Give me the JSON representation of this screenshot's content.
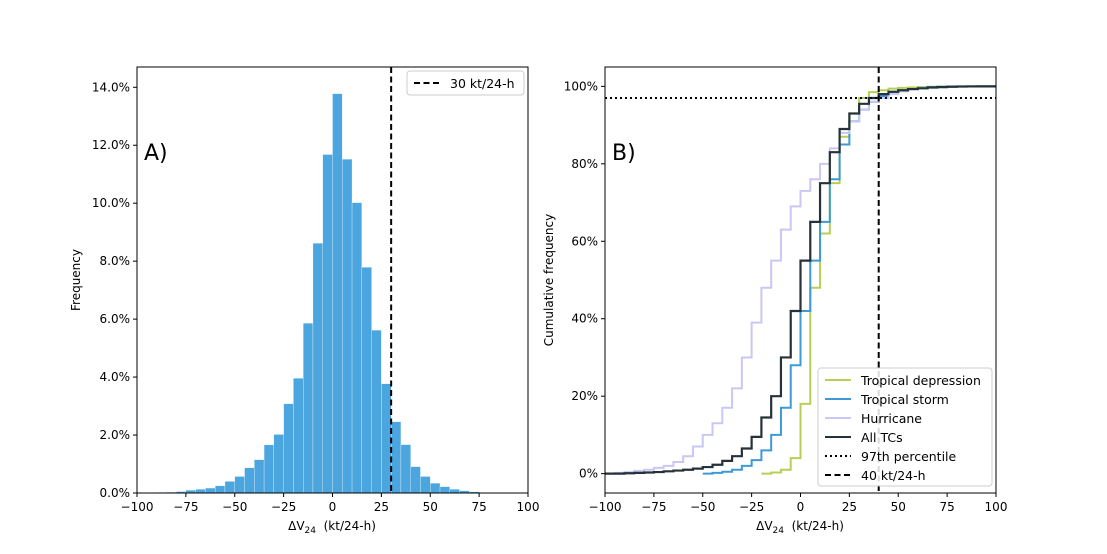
{
  "chart_data": [
    {
      "panel_label": "A)",
      "type": "bar",
      "xlabel": "ΔV",
      "xlabel_sub": "24",
      "xlabel_unit": "  (kt/24-h)",
      "ylabel": "Frequency",
      "xlim": [
        -100,
        100
      ],
      "ylim": [
        0,
        0.147
      ],
      "xticks": [
        "−100",
        "−75",
        "−50",
        "−25",
        "0",
        "25",
        "50",
        "75",
        "100"
      ],
      "yticks": [
        "0.0%",
        "2.0%",
        "4.0%",
        "6.0%",
        "8.0%",
        "10.0%",
        "12.0%",
        "14.0%"
      ],
      "bin_width": 5,
      "bin_starts": [
        -90,
        -85,
        -80,
        -75,
        -70,
        -65,
        -60,
        -55,
        -50,
        -45,
        -40,
        -35,
        -30,
        -25,
        -20,
        -15,
        -10,
        -5,
        0,
        5,
        10,
        15,
        20,
        25,
        30,
        35,
        40,
        45,
        50,
        55,
        60,
        65,
        70
      ],
      "values": [
        0.0002,
        0.0003,
        0.0005,
        0.001,
        0.0013,
        0.0017,
        0.0025,
        0.004,
        0.0057,
        0.0087,
        0.0115,
        0.0166,
        0.0202,
        0.0308,
        0.0396,
        0.0586,
        0.0862,
        0.1168,
        0.1378,
        0.1152,
        0.1002,
        0.0779,
        0.0562,
        0.0377,
        0.0246,
        0.0167,
        0.0091,
        0.0057,
        0.0034,
        0.0022,
        0.0013,
        0.0008,
        0.0004
      ],
      "bar_color": "#4ba5de",
      "reference_line": {
        "x": 30,
        "label": "30 kt/24-h"
      },
      "legend_position": "top-right",
      "grid": false
    },
    {
      "panel_label": "B)",
      "type": "line",
      "xlabel": "ΔV",
      "xlabel_sub": "24",
      "xlabel_unit": "  (kt/24-h)",
      "ylabel": "Cumulative frequency",
      "xlim": [
        -100,
        100
      ],
      "ylim": [
        -0.05,
        1.05
      ],
      "xticks": [
        "−100",
        "−75",
        "−50",
        "−25",
        "0",
        "25",
        "50",
        "75",
        "100"
      ],
      "yticks": [
        "0%",
        "20%",
        "40%",
        "60%",
        "80%",
        "100%"
      ],
      "step_width": 5,
      "series": [
        {
          "name": "Tropical depression",
          "color": "#b5d055",
          "x": [
            -20,
            -15,
            -10,
            -5,
            0,
            5,
            10,
            15,
            20,
            25,
            30,
            35,
            40,
            45,
            50,
            55,
            60,
            65,
            70,
            75
          ],
          "values": [
            0.0,
            0.003,
            0.01,
            0.04,
            0.18,
            0.48,
            0.62,
            0.75,
            0.87,
            0.93,
            0.97,
            0.985,
            0.99,
            0.994,
            0.996,
            0.997,
            0.998,
            0.999,
            0.9995,
            1.0
          ]
        },
        {
          "name": "Tropical storm",
          "color": "#3d9ad6",
          "x": [
            -50,
            -45,
            -40,
            -35,
            -30,
            -25,
            -20,
            -15,
            -10,
            -5,
            0,
            5,
            10,
            15,
            20,
            25,
            30,
            35,
            40,
            45,
            50,
            55,
            60,
            65,
            70,
            75,
            80
          ],
          "values": [
            0.0,
            0.002,
            0.005,
            0.01,
            0.02,
            0.035,
            0.06,
            0.1,
            0.17,
            0.28,
            0.42,
            0.55,
            0.65,
            0.76,
            0.85,
            0.91,
            0.94,
            0.96,
            0.975,
            0.985,
            0.99,
            0.993,
            0.996,
            0.998,
            0.999,
            0.9995,
            1.0
          ]
        },
        {
          "name": "Hurricane",
          "color": "#c9c7f5",
          "x": [
            -100,
            -95,
            -90,
            -85,
            -80,
            -75,
            -70,
            -65,
            -60,
            -55,
            -50,
            -45,
            -40,
            -35,
            -30,
            -25,
            -20,
            -15,
            -10,
            -5,
            0,
            5,
            10,
            15,
            20,
            25,
            30,
            35,
            40,
            45,
            50,
            55,
            60,
            65,
            70,
            75,
            80
          ],
          "values": [
            0.0,
            0.002,
            0.004,
            0.007,
            0.01,
            0.015,
            0.02,
            0.03,
            0.045,
            0.07,
            0.1,
            0.13,
            0.17,
            0.22,
            0.3,
            0.39,
            0.48,
            0.55,
            0.63,
            0.69,
            0.73,
            0.76,
            0.8,
            0.84,
            0.88,
            0.91,
            0.94,
            0.96,
            0.97,
            0.98,
            0.987,
            0.992,
            0.995,
            0.997,
            0.998,
            0.999,
            1.0
          ]
        },
        {
          "name": "All TCs",
          "color": "#263238",
          "x": [
            -100,
            -90,
            -85,
            -80,
            -75,
            -70,
            -65,
            -60,
            -55,
            -50,
            -45,
            -40,
            -35,
            -30,
            -25,
            -20,
            -15,
            -10,
            -5,
            0,
            5,
            10,
            15,
            20,
            25,
            30,
            35,
            40,
            45,
            50,
            55,
            60,
            65,
            70,
            75,
            80,
            85,
            90
          ],
          "values": [
            0.0,
            0.001,
            0.002,
            0.003,
            0.004,
            0.006,
            0.008,
            0.01,
            0.013,
            0.017,
            0.023,
            0.033,
            0.045,
            0.065,
            0.095,
            0.145,
            0.2,
            0.3,
            0.42,
            0.55,
            0.65,
            0.75,
            0.83,
            0.89,
            0.93,
            0.955,
            0.97,
            0.98,
            0.986,
            0.99,
            0.993,
            0.995,
            0.997,
            0.998,
            0.999,
            0.9995,
            0.9998,
            1.0
          ]
        }
      ],
      "reference_lines": [
        {
          "type": "horizontal",
          "y": 0.97,
          "label": "97th percentile"
        },
        {
          "type": "vertical",
          "x": 40,
          "label": "40 kt/24-h"
        }
      ],
      "legend_position": "bottom-right",
      "grid": false
    }
  ]
}
